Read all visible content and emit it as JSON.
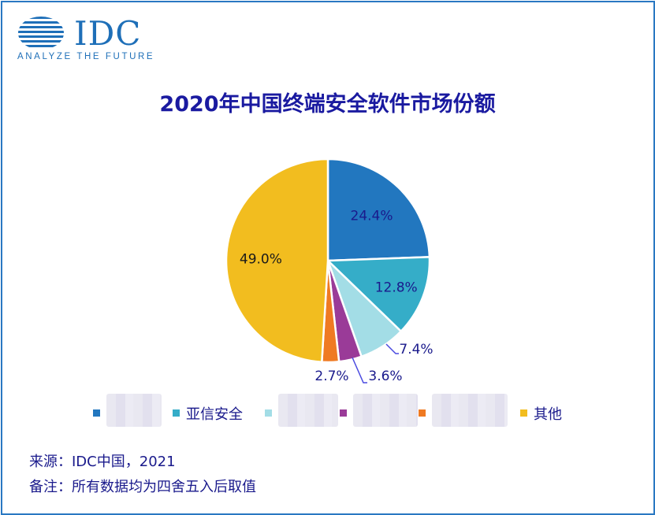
{
  "logo": {
    "word": "IDC",
    "tagline": "ANALYZE THE FUTURE"
  },
  "title": "2020年中国终端安全软件市场份额",
  "chart_data": {
    "type": "pie",
    "title": "2020年中国终端安全软件市场份额",
    "slices": [
      {
        "label": "",
        "value": 24.4,
        "display": "24.4%",
        "color": "#2277bf"
      },
      {
        "label": "亚信安全",
        "value": 12.8,
        "display": "12.8%",
        "color": "#35adc8"
      },
      {
        "label": "",
        "value": 7.4,
        "display": "7.4%",
        "color": "#a3dde6"
      },
      {
        "label": "",
        "value": 3.6,
        "display": "3.6%",
        "color": "#9a3b98"
      },
      {
        "label": "",
        "value": 2.7,
        "display": "2.7%",
        "color": "#ef7a22"
      },
      {
        "label": "其他",
        "value": 49.0,
        "display": "49.0%",
        "color": "#f2bd1f"
      }
    ],
    "legend_position": "bottom",
    "start": "12 o'clock, clockwise"
  },
  "footer": {
    "source": "来源：IDC中国，2021",
    "note": "备注：所有数据均为四舍五入后取值"
  }
}
